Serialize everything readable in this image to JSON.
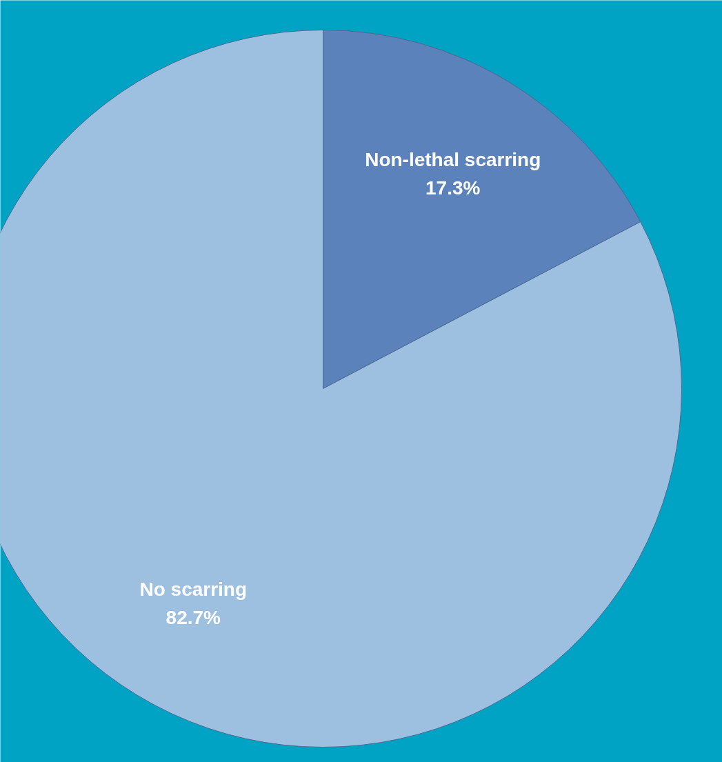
{
  "chart_data": {
    "type": "pie",
    "categories": [
      "Non-lethal scarring",
      "No scarring"
    ],
    "values": [
      17.3,
      82.7
    ],
    "value_labels": [
      "17.3%",
      "82.7%"
    ],
    "colors": [
      "#5b82bb",
      "#9dbfe0"
    ]
  }
}
